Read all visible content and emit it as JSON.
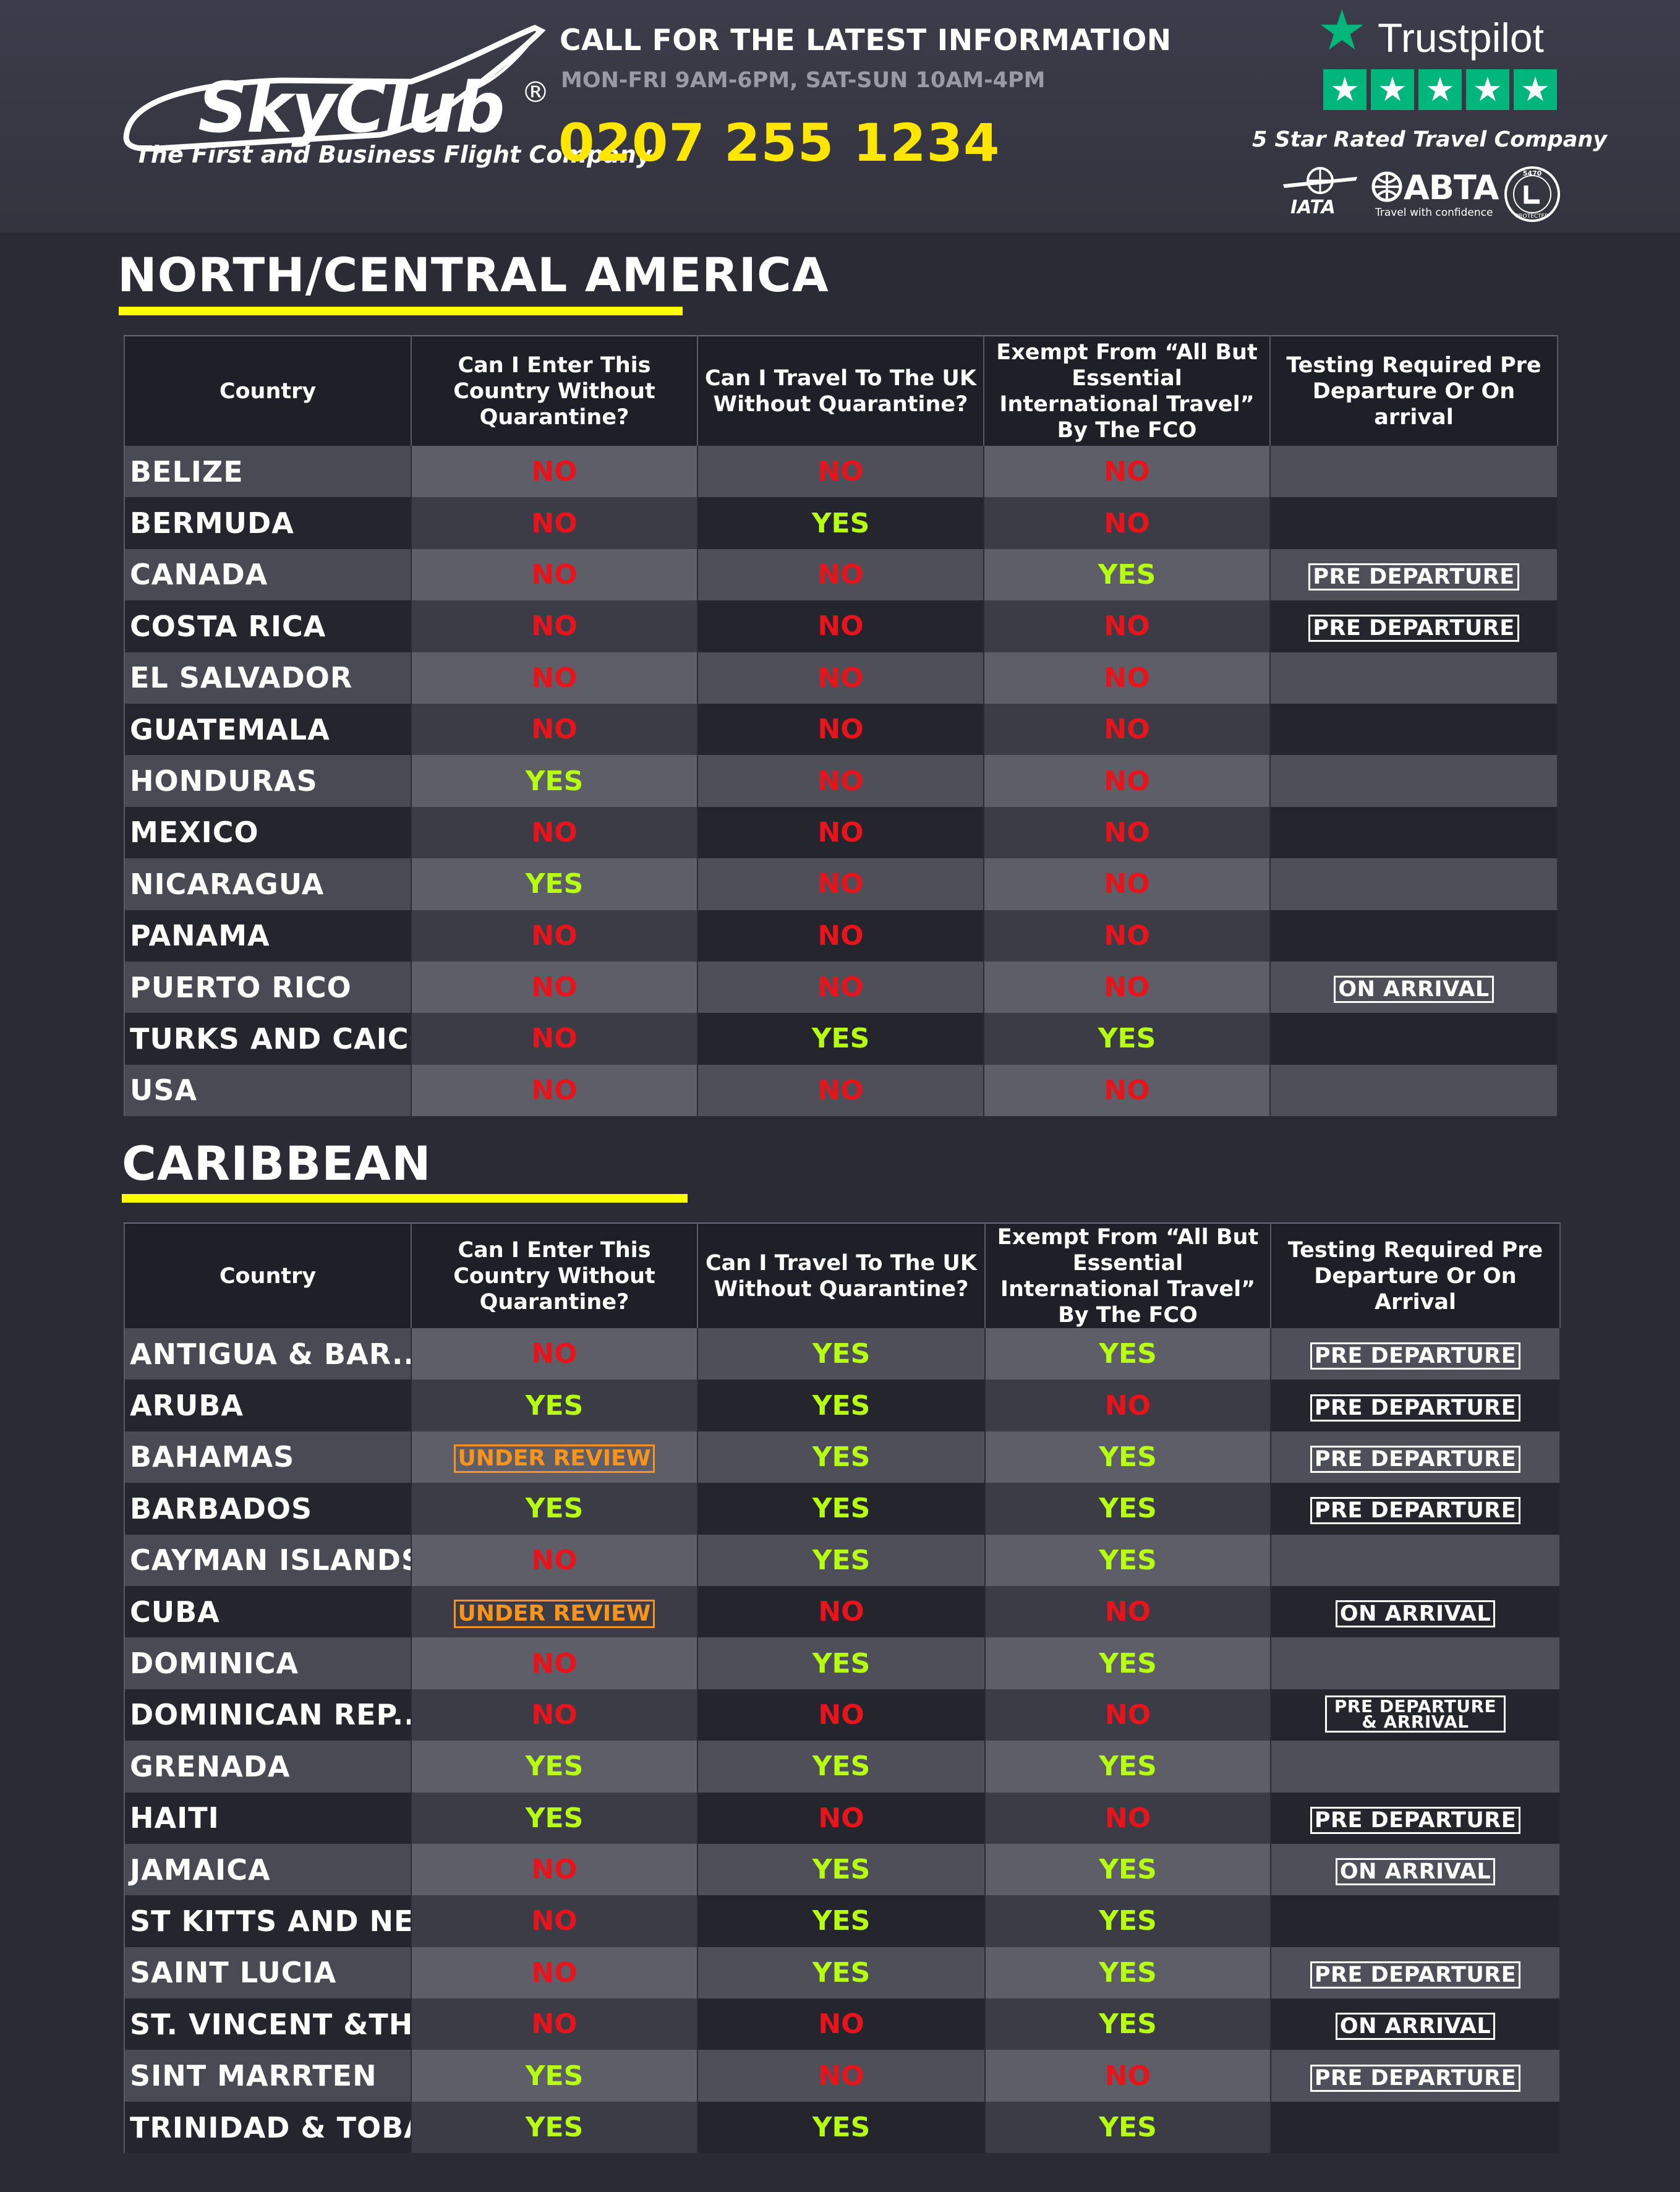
{
  "header": {
    "logo_text": "SkyClub",
    "logo_registered": "®",
    "tagline": "The First and Business Flight Company",
    "call_title": "CALL FOR THE LATEST INFORMATION",
    "hours": "MON-FRI 9AM-6PM, SAT-SUN 10AM-4PM",
    "phone": "0207 255 1234",
    "trustpilot_name": "Trustpilot",
    "trustpilot_stars": [
      "★",
      "★",
      "★",
      "★",
      "★"
    ],
    "rated_text": "5 Star Rated Travel Company",
    "iata_text": "IATA",
    "abta_text": "ABTA",
    "abta_sub": "Travel with confidence",
    "atol_number": "5470",
    "atol_text": "ATOL PROTECTED"
  },
  "colors": {
    "accent_yellow": "#ffe600",
    "underline_yellow": "#ffff00",
    "no_red": "#e8141c",
    "yes_green": "#b6ff13",
    "review_orange": "#f7941d",
    "trustpilot_green": "#00b67a"
  },
  "north_central": {
    "title": "NORTH/CENTRAL AMERICA",
    "headers": [
      "Country",
      "Can I Enter This Country Without Quarantine?",
      "Can I Travel To The UK Without Quarantine?",
      "Exempt From “All But Essential International Travel” By The FCO",
      "Testing Required Pre Departure Or On arrival"
    ],
    "rows": [
      {
        "country": "BELIZE",
        "enter": "NO",
        "travel_uk": "NO",
        "exempt": "NO",
        "testing": ""
      },
      {
        "country": "BERMUDA",
        "enter": "NO",
        "travel_uk": "YES",
        "exempt": "NO",
        "testing": ""
      },
      {
        "country": "CANADA",
        "enter": "NO",
        "travel_uk": "NO",
        "exempt": "YES",
        "testing": "PRE DEPARTURE"
      },
      {
        "country": "COSTA RICA",
        "enter": "NO",
        "travel_uk": "NO",
        "exempt": "NO",
        "testing": "PRE DEPARTURE"
      },
      {
        "country": "EL SALVADOR",
        "enter": "NO",
        "travel_uk": "NO",
        "exempt": "NO",
        "testing": ""
      },
      {
        "country": "GUATEMALA",
        "enter": "NO",
        "travel_uk": "NO",
        "exempt": "NO",
        "testing": ""
      },
      {
        "country": "HONDURAS",
        "enter": "YES",
        "travel_uk": "NO",
        "exempt": "NO",
        "testing": ""
      },
      {
        "country": "MEXICO",
        "enter": "NO",
        "travel_uk": "NO",
        "exempt": "NO",
        "testing": ""
      },
      {
        "country": "NICARAGUA",
        "enter": "YES",
        "travel_uk": "NO",
        "exempt": "NO",
        "testing": ""
      },
      {
        "country": "PANAMA",
        "enter": "NO",
        "travel_uk": "NO",
        "exempt": "NO",
        "testing": ""
      },
      {
        "country": "PUERTO RICO",
        "enter": "NO",
        "travel_uk": "NO",
        "exempt": "NO",
        "testing": "ON ARRIVAL"
      },
      {
        "country": "TURKS AND CAICOS",
        "enter": "NO",
        "travel_uk": "YES",
        "exempt": "YES",
        "testing": ""
      },
      {
        "country": "USA",
        "enter": "NO",
        "travel_uk": "NO",
        "exempt": "NO",
        "testing": ""
      }
    ]
  },
  "caribbean": {
    "title": "CARIBBEAN",
    "headers": [
      "Country",
      "Can I Enter This Country Without Quarantine?",
      "Can I Travel To The UK Without Quarantine?",
      "Exempt From “All But Essential International Travel” By The FCO",
      "Testing Required Pre Departure Or On Arrival"
    ],
    "rows": [
      {
        "country": "ANTIGUA & BAR..",
        "enter": "NO",
        "travel_uk": "YES",
        "exempt": "YES",
        "testing": "PRE DEPARTURE"
      },
      {
        "country": "ARUBA",
        "enter": "YES",
        "travel_uk": "YES",
        "exempt": "NO",
        "testing": "PRE DEPARTURE"
      },
      {
        "country": "BAHAMAS",
        "enter": "UNDER REVIEW",
        "travel_uk": "YES",
        "exempt": "YES",
        "testing": "PRE DEPARTURE"
      },
      {
        "country": "BARBADOS",
        "enter": "YES",
        "travel_uk": "YES",
        "exempt": "YES",
        "testing": "PRE DEPARTURE"
      },
      {
        "country": "CAYMAN ISLANDS",
        "enter": "NO",
        "travel_uk": "YES",
        "exempt": "YES",
        "testing": ""
      },
      {
        "country": "CUBA",
        "enter": "UNDER REVIEW",
        "travel_uk": "NO",
        "exempt": "NO",
        "testing": "ON ARRIVAL"
      },
      {
        "country": "DOMINICA",
        "enter": "NO",
        "travel_uk": "YES",
        "exempt": "YES",
        "testing": ""
      },
      {
        "country": "DOMINICAN REP..",
        "enter": "NO",
        "travel_uk": "NO",
        "exempt": "NO",
        "testing": "PRE DEPARTURE & ARRIVAL",
        "testing_line1": "PRE DEPARTURE",
        "testing_line2": "& ARRIVAL"
      },
      {
        "country": "GRENADA",
        "enter": "YES",
        "travel_uk": "YES",
        "exempt": "YES",
        "testing": ""
      },
      {
        "country": "HAITI",
        "enter": "YES",
        "travel_uk": "NO",
        "exempt": "NO",
        "testing": "PRE DEPARTURE"
      },
      {
        "country": "JAMAICA",
        "enter": "NO",
        "travel_uk": "YES",
        "exempt": "YES",
        "testing": "ON ARRIVAL"
      },
      {
        "country": "ST KITTS AND NEVIS",
        "enter": "NO",
        "travel_uk": "YES",
        "exempt": "YES",
        "testing": ""
      },
      {
        "country": "SAINT LUCIA",
        "enter": "NO",
        "travel_uk": "YES",
        "exempt": "YES",
        "testing": "PRE DEPARTURE"
      },
      {
        "country": "ST. VINCENT &THE..",
        "enter": "NO",
        "travel_uk": "NO",
        "exempt": "YES",
        "testing": "ON ARRIVAL"
      },
      {
        "country": "SINT MARRTEN",
        "enter": "YES",
        "travel_uk": "NO",
        "exempt": "NO",
        "testing": "PRE DEPARTURE"
      },
      {
        "country": "TRINIDAD & TOBAGO",
        "enter": "YES",
        "travel_uk": "YES",
        "exempt": "YES",
        "testing": ""
      }
    ]
  }
}
